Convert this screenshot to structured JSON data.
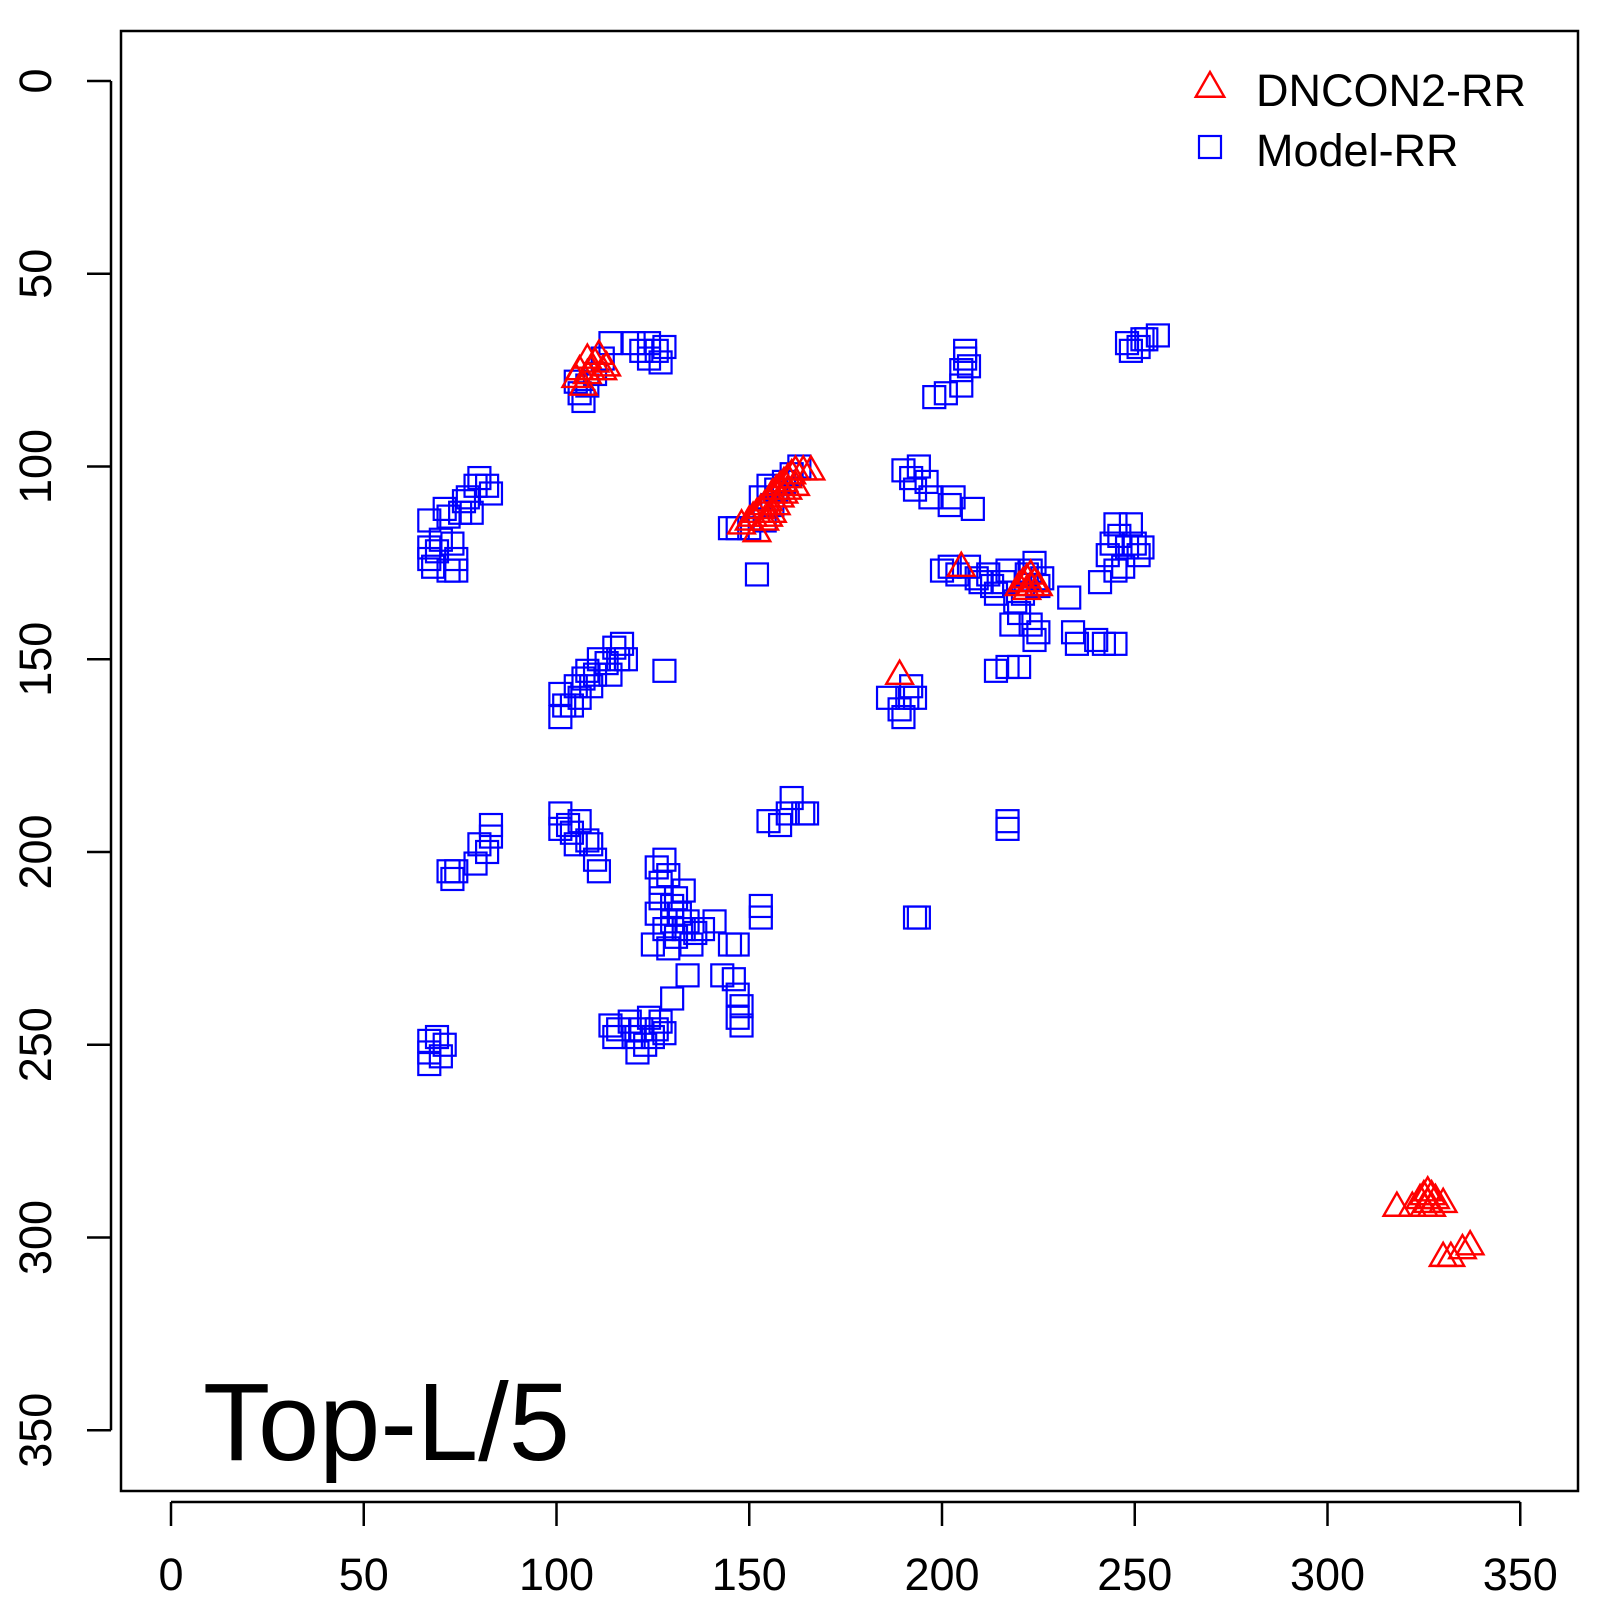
{
  "chart_data": {
    "type": "scatter",
    "title": "",
    "xlabel": "",
    "ylabel": "",
    "xlim": [
      -13,
      367
    ],
    "ylim": [
      367,
      -13
    ],
    "y_axis_reversed": true,
    "grid": false,
    "legend_position": "top-right",
    "annotation": "Top-L/5",
    "x_ticks": [
      0,
      50,
      100,
      150,
      200,
      250,
      300,
      350
    ],
    "y_ticks": [
      0,
      50,
      100,
      150,
      200,
      250,
      300,
      350
    ],
    "x_tick_labels": [
      "0",
      "50",
      "100",
      "150",
      "200",
      "250",
      "300",
      "350"
    ],
    "y_tick_labels": [
      "0",
      "50",
      "100",
      "150",
      "200",
      "250",
      "300",
      "350"
    ],
    "series": [
      {
        "name": "DNCON2-RR",
        "marker": "triangle-up-icon",
        "color": "#ff0000",
        "points": [
          [
            105,
            77
          ],
          [
            106,
            75
          ],
          [
            107,
            79
          ],
          [
            108,
            72
          ],
          [
            108,
            76
          ],
          [
            109,
            75
          ],
          [
            110,
            73
          ],
          [
            111,
            71
          ],
          [
            112,
            75
          ],
          [
            113,
            74
          ],
          [
            148,
            115
          ],
          [
            150,
            114
          ],
          [
            151,
            113
          ],
          [
            152,
            112
          ],
          [
            152,
            117
          ],
          [
            153,
            111
          ],
          [
            154,
            110
          ],
          [
            154,
            114
          ],
          [
            155,
            109
          ],
          [
            155,
            113
          ],
          [
            156,
            107
          ],
          [
            156,
            112
          ],
          [
            157,
            106
          ],
          [
            157,
            110
          ],
          [
            158,
            105
          ],
          [
            158,
            108
          ],
          [
            159,
            104
          ],
          [
            159,
            107
          ],
          [
            160,
            103
          ],
          [
            160,
            106
          ],
          [
            161,
            102
          ],
          [
            162,
            101
          ],
          [
            162,
            105
          ],
          [
            164,
            101
          ],
          [
            166,
            101
          ],
          [
            189,
            154
          ],
          [
            205,
            126
          ],
          [
            220,
            131
          ],
          [
            221,
            130
          ],
          [
            222,
            129
          ],
          [
            222,
            132
          ],
          [
            223,
            128
          ],
          [
            223,
            131
          ],
          [
            224,
            130
          ],
          [
            225,
            131
          ],
          [
            318,
            292
          ],
          [
            322,
            292
          ],
          [
            324,
            290
          ],
          [
            325,
            289
          ],
          [
            325,
            292
          ],
          [
            326,
            288
          ],
          [
            326,
            291
          ],
          [
            327,
            289
          ],
          [
            327,
            292
          ],
          [
            328,
            290
          ],
          [
            330,
            291
          ],
          [
            330,
            305
          ],
          [
            332,
            305
          ],
          [
            335,
            303
          ],
          [
            337,
            302
          ]
        ]
      },
      {
        "name": "Model-RR",
        "marker": "square-icon",
        "color": "#0000ff",
        "points": [
          [
            105,
            78
          ],
          [
            106,
            81
          ],
          [
            107,
            83
          ],
          [
            108,
            79
          ],
          [
            110,
            76
          ],
          [
            112,
            72
          ],
          [
            114,
            68
          ],
          [
            120,
            68
          ],
          [
            122,
            70
          ],
          [
            124,
            72
          ],
          [
            124,
            68
          ],
          [
            126,
            70
          ],
          [
            127,
            73
          ],
          [
            128,
            69
          ],
          [
            67,
            114
          ],
          [
            67,
            121
          ],
          [
            67,
            124
          ],
          [
            68,
            126
          ],
          [
            69,
            122
          ],
          [
            70,
            119
          ],
          [
            71,
            111
          ],
          [
            72,
            113
          ],
          [
            72,
            127
          ],
          [
            73,
            120
          ],
          [
            74,
            124
          ],
          [
            75,
            112
          ],
          [
            74,
            127
          ],
          [
            76,
            109
          ],
          [
            77,
            108
          ],
          [
            78,
            112
          ],
          [
            79,
            105
          ],
          [
            80,
            103
          ],
          [
            82,
            105
          ],
          [
            83,
            107
          ],
          [
            101,
            159
          ],
          [
            102,
            162
          ],
          [
            101,
            165
          ],
          [
            104,
            162
          ],
          [
            105,
            157
          ],
          [
            106,
            160
          ],
          [
            107,
            155
          ],
          [
            108,
            153
          ],
          [
            109,
            157
          ],
          [
            110,
            154
          ],
          [
            111,
            150
          ],
          [
            113,
            151
          ],
          [
            114,
            154
          ],
          [
            115,
            147
          ],
          [
            116,
            150
          ],
          [
            117,
            146
          ],
          [
            118,
            150
          ],
          [
            128,
            153
          ],
          [
            145,
            116
          ],
          [
            147,
            116
          ],
          [
            150,
            116
          ],
          [
            152,
            128
          ],
          [
            153,
            108
          ],
          [
            154,
            114
          ],
          [
            155,
            105
          ],
          [
            156,
            110
          ],
          [
            157,
            106
          ],
          [
            159,
            104
          ],
          [
            161,
            102
          ],
          [
            163,
            100
          ],
          [
            190,
            101
          ],
          [
            192,
            103
          ],
          [
            193,
            106
          ],
          [
            194,
            100
          ],
          [
            196,
            104
          ],
          [
            197,
            108
          ],
          [
            198,
            82
          ],
          [
            201,
            81
          ],
          [
            202,
            110
          ],
          [
            203,
            108
          ],
          [
            205,
            79
          ],
          [
            205,
            75
          ],
          [
            206,
            72
          ],
          [
            206,
            70
          ],
          [
            207,
            74
          ],
          [
            208,
            111
          ],
          [
            200,
            127
          ],
          [
            202,
            126
          ],
          [
            204,
            128
          ],
          [
            207,
            126
          ],
          [
            209,
            129
          ],
          [
            210,
            130
          ],
          [
            212,
            128
          ],
          [
            213,
            131
          ],
          [
            214,
            133
          ],
          [
            216,
            130
          ],
          [
            217,
            127
          ],
          [
            218,
            141
          ],
          [
            219,
            135
          ],
          [
            220,
            138
          ],
          [
            221,
            133
          ],
          [
            222,
            128
          ],
          [
            223,
            127
          ],
          [
            224,
            125
          ],
          [
            225,
            131
          ],
          [
            226,
            129
          ],
          [
            214,
            153
          ],
          [
            217,
            152
          ],
          [
            220,
            152
          ],
          [
            223,
            141
          ],
          [
            224,
            145
          ],
          [
            225,
            143
          ],
          [
            233,
            134
          ],
          [
            234,
            143
          ],
          [
            235,
            146
          ],
          [
            240,
            145
          ],
          [
            241,
            130
          ],
          [
            242,
            146
          ],
          [
            243,
            123
          ],
          [
            244,
            120
          ],
          [
            245,
            127
          ],
          [
            245,
            115
          ],
          [
            246,
            118
          ],
          [
            245,
            146
          ],
          [
            247,
            126
          ],
          [
            248,
            121
          ],
          [
            249,
            115
          ],
          [
            250,
            120
          ],
          [
            251,
            123
          ],
          [
            252,
            121
          ],
          [
            248,
            68
          ],
          [
            249,
            70
          ],
          [
            251,
            69
          ],
          [
            252,
            67
          ],
          [
            253,
            67
          ],
          [
            256,
            66
          ],
          [
            67,
            249
          ],
          [
            67,
            252
          ],
          [
            67,
            255
          ],
          [
            69,
            248
          ],
          [
            70,
            253
          ],
          [
            71,
            250
          ],
          [
            72,
            205
          ],
          [
            73,
            207
          ],
          [
            74,
            205
          ],
          [
            79,
            203
          ],
          [
            80,
            198
          ],
          [
            82,
            200
          ],
          [
            83,
            196
          ],
          [
            83,
            193
          ],
          [
            101,
            190
          ],
          [
            101,
            194
          ],
          [
            103,
            193
          ],
          [
            104,
            195
          ],
          [
            105,
            198
          ],
          [
            106,
            192
          ],
          [
            108,
            197
          ],
          [
            109,
            198
          ],
          [
            110,
            202
          ],
          [
            111,
            205
          ],
          [
            125,
            224
          ],
          [
            126,
            216
          ],
          [
            126,
            204
          ],
          [
            127,
            208
          ],
          [
            127,
            212
          ],
          [
            128,
            202
          ],
          [
            128,
            220
          ],
          [
            129,
            206
          ],
          [
            129,
            225
          ],
          [
            130,
            214
          ],
          [
            130,
            218
          ],
          [
            131,
            212
          ],
          [
            131,
            222
          ],
          [
            132,
            216
          ],
          [
            133,
            210
          ],
          [
            133,
            220
          ],
          [
            134,
            218
          ],
          [
            134,
            232
          ],
          [
            135,
            224
          ],
          [
            136,
            221
          ],
          [
            138,
            220
          ],
          [
            141,
            218
          ],
          [
            114,
            245
          ],
          [
            115,
            248
          ],
          [
            116,
            246
          ],
          [
            119,
            244
          ],
          [
            120,
            248
          ],
          [
            121,
            252
          ],
          [
            122,
            246
          ],
          [
            123,
            250
          ],
          [
            124,
            243
          ],
          [
            125,
            248
          ],
          [
            126,
            246
          ],
          [
            127,
            244
          ],
          [
            128,
            247
          ],
          [
            130,
            238
          ],
          [
            143,
            232
          ],
          [
            145,
            224
          ],
          [
            146,
            233
          ],
          [
            147,
            224
          ],
          [
            147,
            243
          ],
          [
            148,
            240
          ],
          [
            148,
            245
          ],
          [
            147,
            237
          ],
          [
            153,
            217
          ],
          [
            153,
            214
          ],
          [
            155,
            192
          ],
          [
            158,
            193
          ],
          [
            160,
            190
          ],
          [
            161,
            186
          ],
          [
            164,
            190
          ],
          [
            165,
            190
          ],
          [
            186,
            160
          ],
          [
            189,
            163
          ],
          [
            190,
            165
          ],
          [
            191,
            160
          ],
          [
            192,
            157
          ],
          [
            193,
            160
          ],
          [
            193,
            217
          ],
          [
            194,
            217
          ],
          [
            217,
            192
          ],
          [
            217,
            194
          ]
        ]
      }
    ]
  }
}
